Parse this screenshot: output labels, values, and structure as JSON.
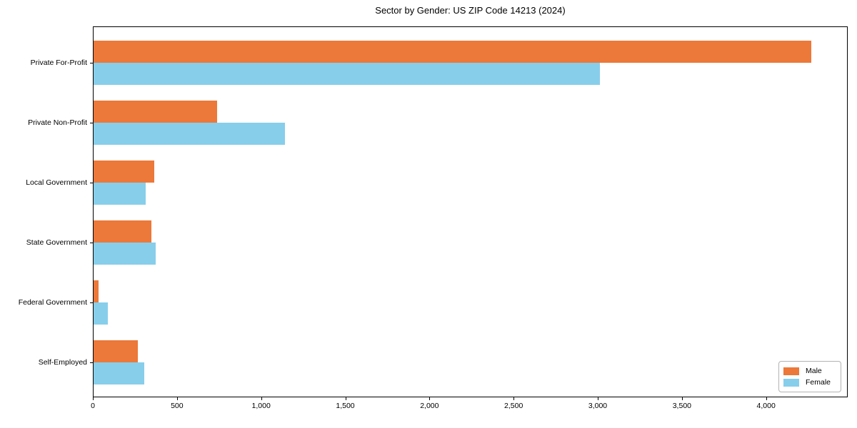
{
  "chart_data": {
    "type": "bar",
    "orientation": "horizontal",
    "title": "Sector by Gender: US ZIP Code 14213 (2024)",
    "categories": [
      "Private For-Profit",
      "Private Non-Profit",
      "Local Government",
      "State Government",
      "Federal Government",
      "Self-Employed"
    ],
    "series": [
      {
        "name": "Male",
        "color": "#EC7839",
        "values": [
          4266,
          733,
          362,
          342,
          30,
          262
        ]
      },
      {
        "name": "Female",
        "color": "#87CEEB",
        "values": [
          3008,
          1137,
          311,
          368,
          84,
          300
        ]
      }
    ],
    "xlabel": "",
    "ylabel": "",
    "xlim": [
      0,
      4485
    ],
    "xticks": [
      0,
      500,
      1000,
      1500,
      2000,
      2500,
      3000,
      3500,
      4000
    ],
    "xtick_format": "thousands-comma",
    "grid": false,
    "legend": {
      "position": "lower right"
    },
    "colors": {
      "spine": "#000000",
      "background": "#ffffff",
      "legend_border": "#b3b3b3"
    }
  }
}
